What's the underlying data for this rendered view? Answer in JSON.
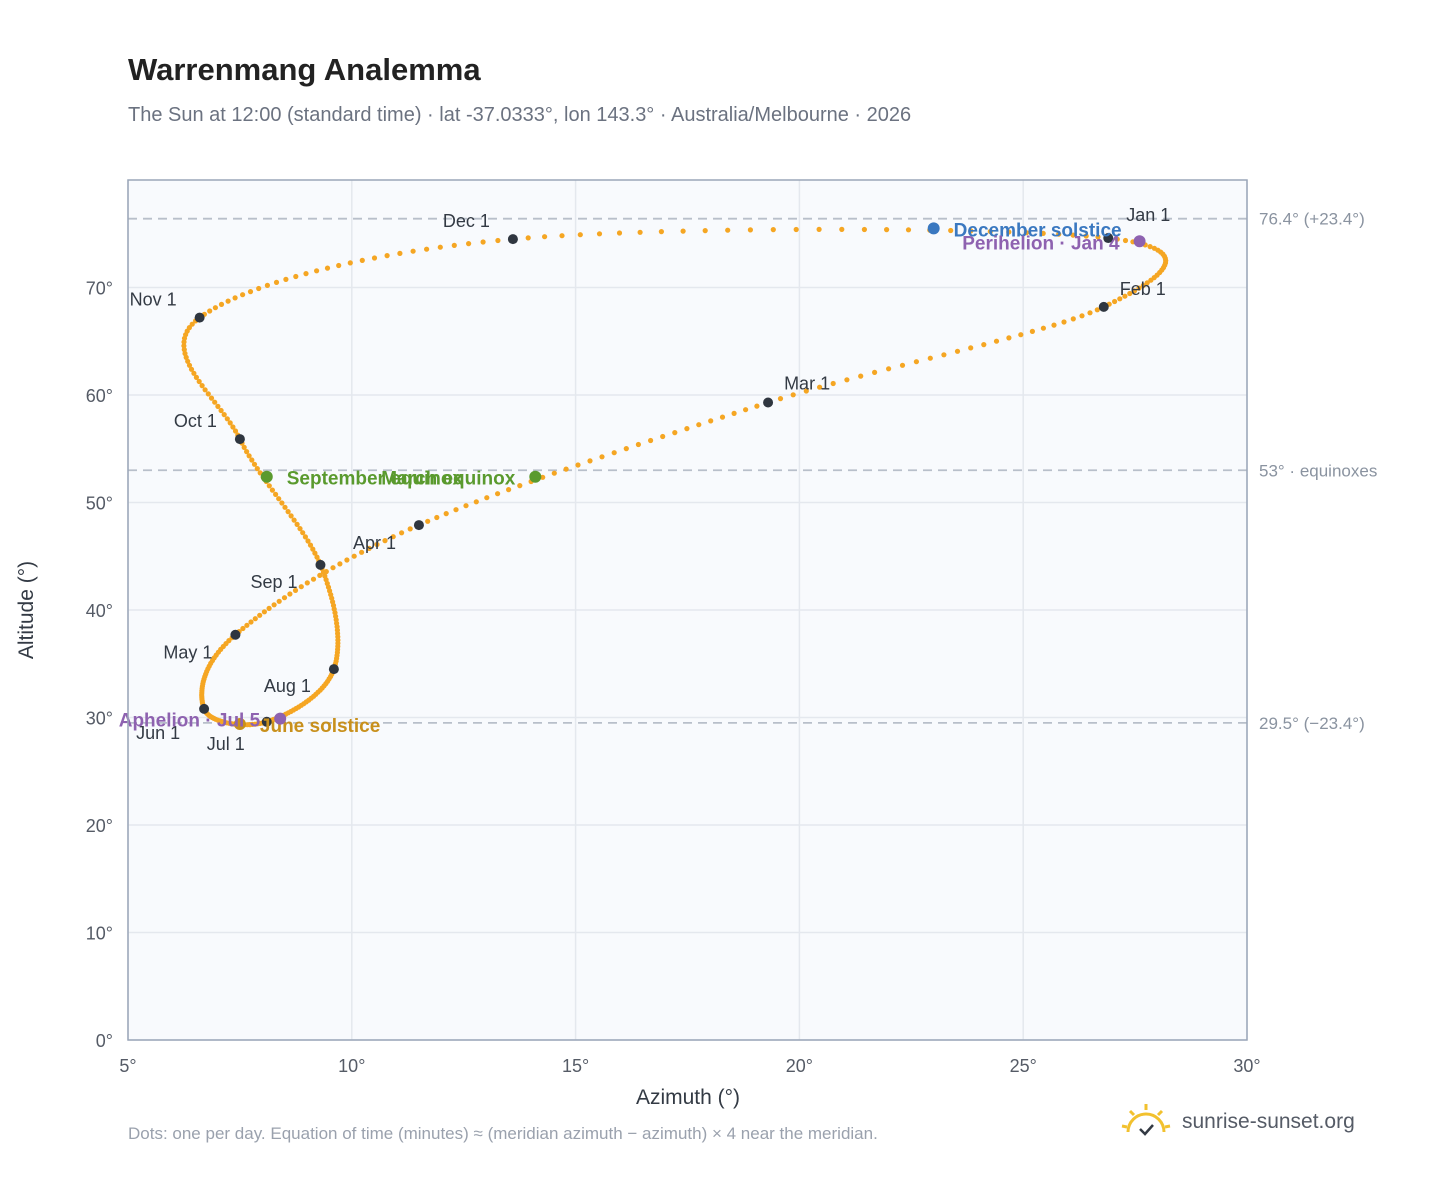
{
  "header": {
    "title": "Warrenmang Analemma",
    "subtitle": "The Sun at 12:00 (standard time) · lat -37.0333°, lon 143.3° · Australia/Melbourne · 2026"
  },
  "footer": {
    "note": "Dots: one per day. Equation of time (minutes) ≈ (meridian azimuth − azimuth) × 4 near the meridian.",
    "brand": "sunrise-sunset.org"
  },
  "colors": {
    "path": "#f5a623",
    "month_marker": "#2f3640",
    "equinox": "#5a9a2e",
    "december_solstice": "#3a78c0",
    "june_solstice": "#c8901c",
    "perihelion_aphelion": "#8e62b0",
    "reference_line": "#b8bfca",
    "plot_background": "#f8fafd",
    "grid": "#e4e8ee",
    "axis_border": "#9aa6b8"
  },
  "chart_data": {
    "type": "scatter",
    "title": "Warrenmang Analemma",
    "xlabel": "Azimuth (°)",
    "ylabel": "Altitude (°)",
    "xlim": [
      5,
      30
    ],
    "ylim": [
      0,
      80
    ],
    "x_ticks": [
      5,
      10,
      15,
      20,
      25,
      30
    ],
    "x_tick_labels": [
      "5°",
      "10°",
      "15°",
      "20°",
      "25°",
      "30°"
    ],
    "y_ticks": [
      0,
      10,
      20,
      30,
      40,
      50,
      60,
      70
    ],
    "y_tick_labels": [
      "0°",
      "10°",
      "20°",
      "30°",
      "40°",
      "50°",
      "60°",
      "70°"
    ],
    "grid": true,
    "reference_lines": [
      {
        "y": 76.4,
        "label": "76.4° (+23.4°)"
      },
      {
        "y": 53.0,
        "label": "53° · equinoxes"
      },
      {
        "y": 29.5,
        "label": "29.5° (−23.4°)"
      }
    ],
    "month_markers": [
      {
        "label": "Jan 1",
        "x": 26.9,
        "y": 74.6
      },
      {
        "label": "Feb 1",
        "x": 26.8,
        "y": 68.2
      },
      {
        "label": "Mar 1",
        "x": 19.3,
        "y": 59.3
      },
      {
        "label": "Apr 1",
        "x": 11.5,
        "y": 47.9
      },
      {
        "label": "May 1",
        "x": 7.4,
        "y": 37.7
      },
      {
        "label": "Jun 1",
        "x": 6.7,
        "y": 30.8
      },
      {
        "label": "Jul 1",
        "x": 8.1,
        "y": 29.6
      },
      {
        "label": "Aug 1",
        "x": 9.6,
        "y": 34.5
      },
      {
        "label": "Sep 1",
        "x": 9.3,
        "y": 44.2
      },
      {
        "label": "Oct 1",
        "x": 7.5,
        "y": 55.9
      },
      {
        "label": "Nov 1",
        "x": 6.6,
        "y": 67.2
      },
      {
        "label": "Dec 1",
        "x": 13.6,
        "y": 74.5
      }
    ],
    "events": [
      {
        "label": "December solstice",
        "x": 23.0,
        "y": 75.5,
        "kind": "december_solstice"
      },
      {
        "label": "Perihelion · Jan 4",
        "x": 27.6,
        "y": 74.3,
        "kind": "perihelion_aphelion"
      },
      {
        "label": "March equinox",
        "x": 14.1,
        "y": 52.4,
        "kind": "equinox"
      },
      {
        "label": "September equinox",
        "x": 8.1,
        "y": 52.4,
        "kind": "equinox"
      },
      {
        "label": "June solstice",
        "x": 7.5,
        "y": 29.4,
        "kind": "june_solstice"
      },
      {
        "label": "Aphelion · Jul 5",
        "x": 8.4,
        "y": 29.9,
        "kind": "perihelion_aphelion"
      }
    ]
  }
}
